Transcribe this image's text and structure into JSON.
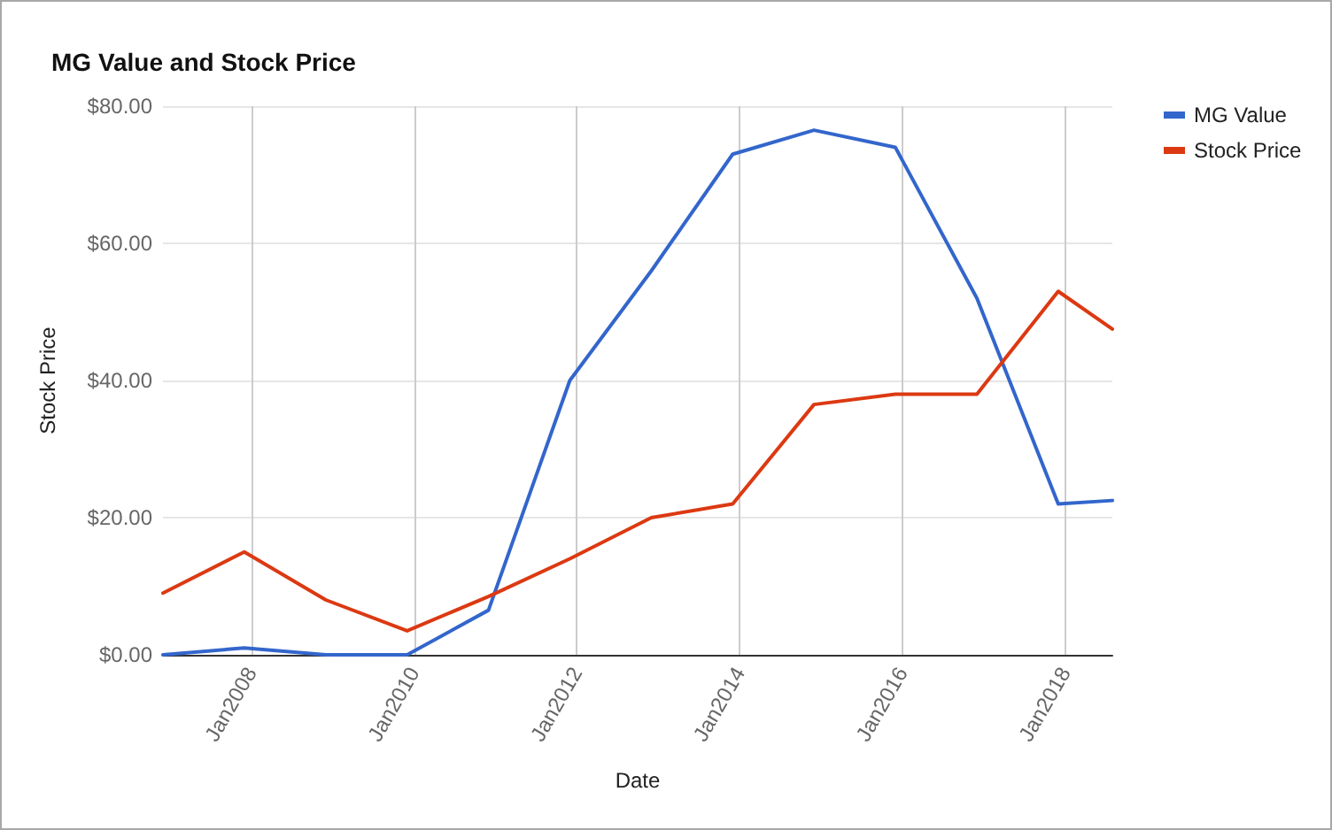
{
  "chart_data": {
    "type": "line",
    "title": "MG Value and Stock Price",
    "xlabel": "Date",
    "ylabel": "Stock Price",
    "x": [
      "2006-12",
      "2007-12",
      "2008-12",
      "2009-12",
      "2010-12",
      "2011-12",
      "2012-12",
      "2013-12",
      "2014-12",
      "2015-12",
      "2016-12",
      "2017-12",
      "2018-08"
    ],
    "series": [
      {
        "name": "MG Value",
        "color": "#3366cc",
        "values": [
          0,
          1,
          0,
          0,
          6.5,
          40,
          56,
          73,
          76.5,
          74,
          52,
          22,
          22.5
        ]
      },
      {
        "name": "Stock Price",
        "color": "#dc3912",
        "values": [
          9,
          15,
          8,
          3.5,
          8.5,
          14,
          20,
          22,
          36.5,
          38,
          38,
          53,
          47.5
        ]
      }
    ],
    "xlim": [
      "2006-12",
      "2018-08"
    ],
    "xticks": [
      {
        "value": "2008-01",
        "label": "Jan2008"
      },
      {
        "value": "2010-01",
        "label": "Jan2010"
      },
      {
        "value": "2012-01",
        "label": "Jan2012"
      },
      {
        "value": "2014-01",
        "label": "Jan2014"
      },
      {
        "value": "2016-01",
        "label": "Jan2016"
      },
      {
        "value": "2018-01",
        "label": "Jan2018"
      }
    ],
    "ylim": [
      0,
      80
    ],
    "yticks": [
      {
        "value": 0,
        "label": "$0.00"
      },
      {
        "value": 20,
        "label": "$20.00"
      },
      {
        "value": 40,
        "label": "$40.00"
      },
      {
        "value": 60,
        "label": "$60.00"
      },
      {
        "value": 80,
        "label": "$80.00"
      }
    ],
    "grid": true,
    "legend": "top right",
    "marker": "none"
  }
}
